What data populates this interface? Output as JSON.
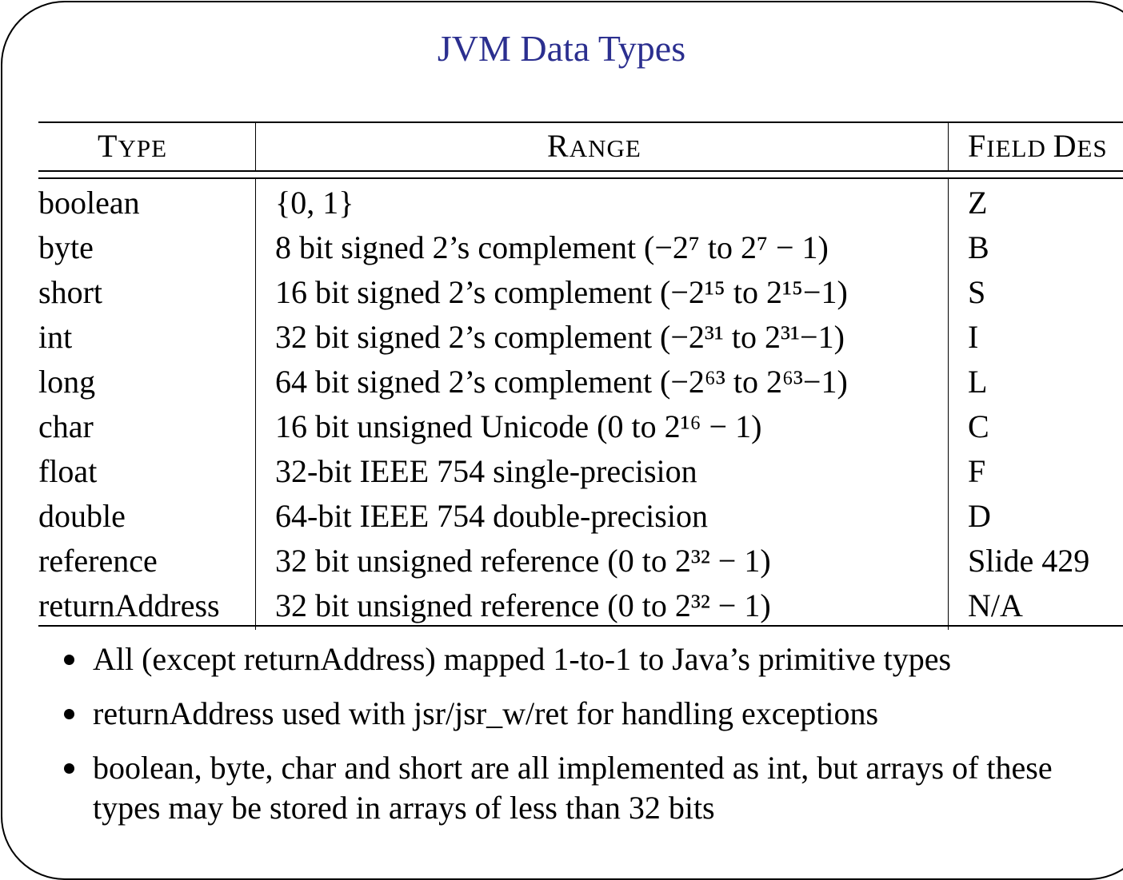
{
  "title": "JVM Data Types",
  "table": {
    "headers": {
      "type_first": "T",
      "type_rest": "YPE",
      "range_first": "R",
      "range_rest": "ANGE",
      "field_first": "F",
      "field_rest": "IELD ",
      "field_second_first": "D",
      "field_second_rest": "ES"
    },
    "rows": [
      {
        "type": "boolean",
        "range": "{0, 1}",
        "field": "Z"
      },
      {
        "type": "byte",
        "range": "8 bit signed 2’s complement (−2⁷ to 2⁷ − 1)",
        "field": "B"
      },
      {
        "type": "short",
        "range": "16 bit signed 2’s complement (−2¹⁵ to 2¹⁵−1)",
        "field": "S"
      },
      {
        "type": "int",
        "range": "32 bit signed 2’s complement (−2³¹ to 2³¹−1)",
        "field": "I"
      },
      {
        "type": "long",
        "range": "64 bit signed 2’s complement (−2⁶³ to 2⁶³−1)",
        "field": "L"
      },
      {
        "type": "char",
        "range": "16 bit unsigned Unicode (0 to 2¹⁶ − 1)",
        "field": "C"
      },
      {
        "type": "float",
        "range": "32-bit IEEE 754 single-precision",
        "field": "F"
      },
      {
        "type": "double",
        "range": "64-bit IEEE 754 double-precision",
        "field": "D"
      },
      {
        "type": "reference",
        "range": "32 bit unsigned reference (0 to 2³² − 1)",
        "field": "Slide 429"
      },
      {
        "type": "returnAddress",
        "range": "32 bit unsigned reference (0 to 2³² − 1)",
        "field": "N/A"
      }
    ]
  },
  "bullets": [
    "All (except returnAddress) mapped 1-to-1 to Java’s primitive types",
    "returnAddress used with jsr/jsr_w/ret for handling exceptions",
    "boolean, byte, char and short are all implemented as int, but arrays of these types may be stored in arrays of less than 32 bits"
  ]
}
